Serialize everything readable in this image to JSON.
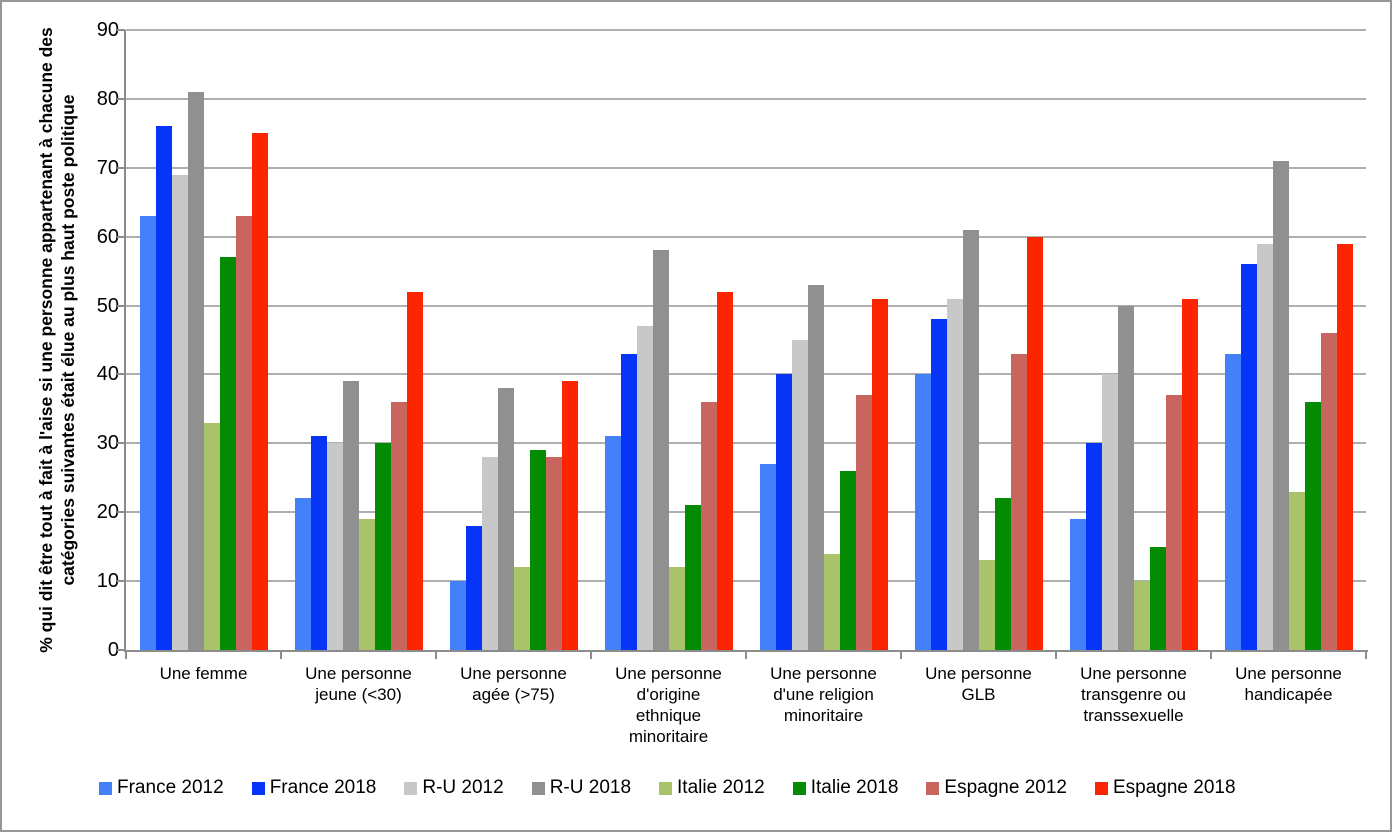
{
  "chart_data": {
    "type": "bar",
    "title": "",
    "ylabel": "% qui dit être tout à fait à l'aise si une personne appartenant à chacune des catégories suivantes était élue au plus haut poste politique",
    "ylabel_lines": [
      "% qui dit être tout à fait à l'aise si une personne appartenant à chacune des",
      "catégories suivantes était élue au plus haut poste politique"
    ],
    "ylim": [
      0,
      90
    ],
    "ytick_step": 10,
    "yticks": [
      0,
      10,
      20,
      30,
      40,
      50,
      60,
      70,
      80,
      90
    ],
    "grid": true,
    "legend_position": "bottom",
    "categories": [
      "Une femme",
      "Une personne jeune (<30)",
      "Une personne agée (>75)",
      "Une personne d'origine ethnique minoritaire",
      "Une personne d'une religion minoritaire",
      "Une personne GLB",
      "Une personne transgenre ou transsexuelle",
      "Une personne handicapée"
    ],
    "category_lines": [
      [
        "Une femme"
      ],
      [
        "Une personne",
        "jeune (<30)"
      ],
      [
        "Une personne",
        "agée (>75)"
      ],
      [
        "Une personne",
        "d'origine",
        "ethnique",
        "minoritaire"
      ],
      [
        "Une personne",
        "d'une religion",
        "minoritaire"
      ],
      [
        "Une personne",
        "GLB"
      ],
      [
        "Une personne",
        "transgenre ou",
        "transsexuelle"
      ],
      [
        "Une personne",
        "handicapée"
      ]
    ],
    "series": [
      {
        "name": "France 2012",
        "color": "#4381FB",
        "values": [
          63,
          22,
          10,
          31,
          27,
          40,
          19,
          43
        ]
      },
      {
        "name": "France 2018",
        "color": "#0735F7",
        "values": [
          76,
          31,
          18,
          43,
          40,
          48,
          30,
          56
        ]
      },
      {
        "name": "R-U 2012",
        "color": "#C8C8C8",
        "values": [
          69,
          30,
          28,
          47,
          45,
          51,
          40,
          59
        ]
      },
      {
        "name": "R-U 2018",
        "color": "#909090",
        "values": [
          81,
          39,
          38,
          58,
          53,
          61,
          50,
          71
        ]
      },
      {
        "name": "Italie 2012",
        "color": "#A9C36B",
        "values": [
          33,
          19,
          12,
          12,
          14,
          13,
          10,
          23
        ]
      },
      {
        "name": "Italie 2018",
        "color": "#038C03",
        "values": [
          57,
          30,
          29,
          21,
          26,
          22,
          15,
          36
        ]
      },
      {
        "name": "Espagne 2012",
        "color": "#C8655E",
        "values": [
          63,
          36,
          28,
          36,
          37,
          43,
          37,
          46
        ]
      },
      {
        "name": "Espagne 2018",
        "color": "#FB2600",
        "values": [
          75,
          52,
          39,
          52,
          51,
          60,
          51,
          59
        ]
      }
    ]
  },
  "style_colors": {
    "axis": "#8C8C8C",
    "gridline": "#AFAFAF",
    "frame_border": "#979797",
    "text": "#000000",
    "background": "#FFFFFF"
  }
}
